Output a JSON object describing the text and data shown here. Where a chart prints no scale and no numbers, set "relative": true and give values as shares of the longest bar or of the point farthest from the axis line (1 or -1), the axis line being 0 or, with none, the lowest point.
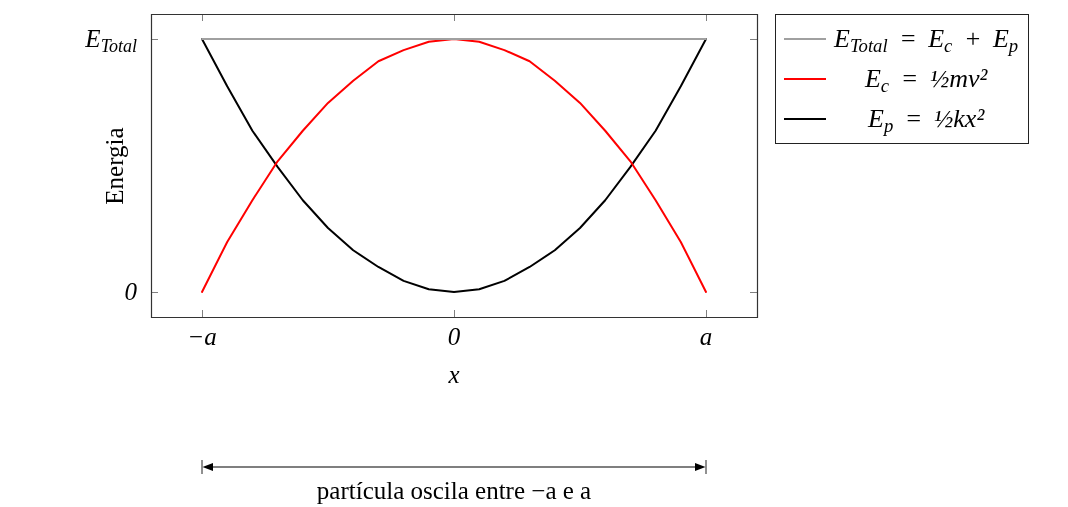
{
  "chart_data": {
    "type": "line",
    "relative": true,
    "xlabel": "x",
    "ylabel": "Energia",
    "categories": [
      "−a",
      null,
      null,
      null,
      null,
      null,
      null,
      null,
      null,
      null,
      "0",
      null,
      null,
      null,
      null,
      null,
      null,
      null,
      null,
      null,
      "a"
    ],
    "legend": "right",
    "marker": "none",
    "line_style": "solid",
    "annotations": [
      "E$_{Total}$",
      "0",
      "partícula oscila entre −a e a"
    ],
    "series": [
      {
        "name": "E$_{Total}$ = E$_{c}$ + E$_{p}$",
        "color": "#a0a0a0",
        "values": [
          1,
          1,
          1,
          1,
          1,
          1,
          1,
          1,
          1,
          1,
          1,
          1,
          1,
          1,
          1,
          1,
          1,
          1,
          1,
          1,
          1
        ]
      },
      {
        "name": "E$_{c}$ = ½mv²",
        "color": "#ff0000",
        "values": [
          0.09,
          0.27,
          0.42,
          0.56,
          0.67,
          0.77,
          0.85,
          0.92,
          0.96,
          0.99,
          1,
          0.99,
          0.96,
          0.92,
          0.85,
          0.77,
          0.67,
          0.56,
          0.42,
          0.27,
          0.09
        ]
      },
      {
        "name": "E$_{p}$ = ½kx²",
        "color": "#000000",
        "values": [
          1,
          0.83,
          0.67,
          0.54,
          0.42,
          0.32,
          0.24,
          0.18,
          0.13,
          0.1,
          0.09,
          0.1,
          0.13,
          0.18,
          0.24,
          0.32,
          0.42,
          0.54,
          0.67,
          0.83,
          1
        ]
      }
    ]
  }
}
